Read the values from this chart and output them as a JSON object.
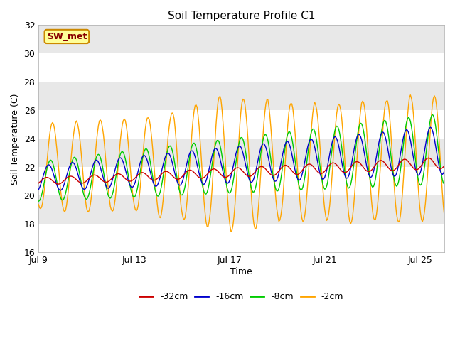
{
  "title": "Soil Temperature Profile C1",
  "xlabel": "Time",
  "ylabel": "Soil Temperature (C)",
  "ylim": [
    16,
    32
  ],
  "yticks": [
    16,
    18,
    20,
    22,
    24,
    26,
    28,
    30,
    32
  ],
  "xlim_days": [
    0,
    17
  ],
  "xtick_labels": [
    "Jul 9",
    "Jul 13",
    "Jul 17",
    "Jul 21",
    "Jul 25"
  ],
  "xtick_positions": [
    0,
    4,
    8,
    12,
    16
  ],
  "fig_bg_color": "#ffffff",
  "plot_bg_color": "#e8e8e8",
  "white_band_color": "#ffffff",
  "line_colors": {
    "-32cm": "#cc0000",
    "-16cm": "#0000cc",
    "-8cm": "#00cc00",
    "-2cm": "#ffa500"
  },
  "annotation_label": "SW_met",
  "annotation_bg": "#ffff99",
  "annotation_border": "#cc8800",
  "annotation_text_color": "#880000"
}
